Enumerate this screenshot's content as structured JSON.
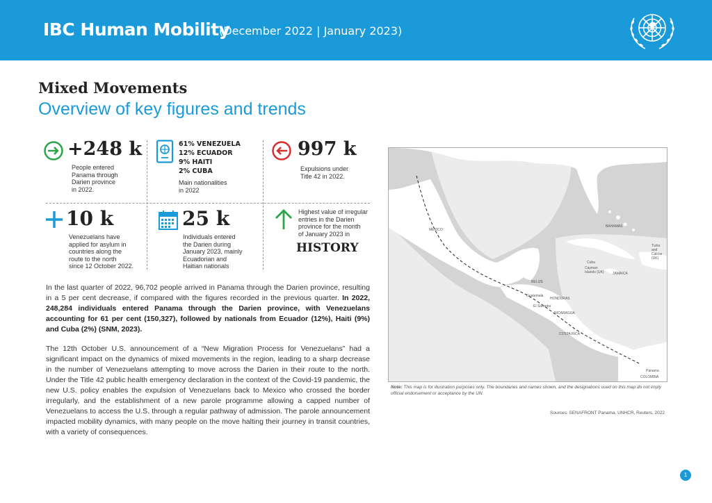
{
  "header": {
    "title": "IBC Human Mobility",
    "subtitle": "(December 2022 | January 2023)"
  },
  "section": {
    "title": "Mixed Movements",
    "subtitle": "Overview of key figures and trends"
  },
  "stats": {
    "entered": {
      "value": "+248 k",
      "desc": [
        "People entered",
        "Panama through",
        "Darien province",
        "in 2022."
      ]
    },
    "nationalities": {
      "lines": [
        "61% VENEZUELA",
        "12% ECUADOR",
        "9% HAITI",
        "2% CUBA"
      ],
      "desc": [
        "Main nationalities",
        "in 2022"
      ]
    },
    "expulsions": {
      "value": "997 k",
      "desc": [
        "Expulsions under",
        "Title 42 in 2022."
      ]
    },
    "asylum": {
      "value": "10 k",
      "desc": [
        "Venezuelans have",
        "applied for asylum in",
        "countries along the",
        "route to the north",
        "since 12 October 2022."
      ]
    },
    "january": {
      "value": "25 k",
      "desc": [
        "Individuals entered",
        "the Darien during",
        "January 2023, mainly",
        "Ecuadorian and",
        "Haitian nationals"
      ]
    },
    "history": {
      "desc": [
        "Highest value of irregular",
        "entries in the Darien",
        "province for the month",
        "of January 2023 in"
      ],
      "value": "HISTORY"
    }
  },
  "paragraphs": {
    "p1_normal": "In the last quarter of 2022, 96,702 people arrived in Panama through the Darien province, resulting in a 5 per cent decrease, if compared with the figures recorded in the previous quarter. ",
    "p1_bold": "In 2022, 248,284 individuals entered Panama through the Darien province, with Venezuelans accounting for 61 per cent (150,327), followed by nationals from Ecuador (12%), Haiti (9%) and Cuba (2%) (SNM, 2023).",
    "p2": "The 12th October U.S. announcement of a “New Migration Process for Venezuelans” had a significant impact on the dynamics of mixed movements in the region, leading to a sharp decrease in the number of Venezuelans attempting to move across the Darien in their route to the north. Under the Title 42 public health emergency declaration in the context of the Covid-19 pandemic, the new U.S. policy enables the expulsion of Venezuelans back to Mexico who crossed the border irregularly, and the establishment of a new parole programme allowing a capped number of Venezuelans to access the U.S. through a regular pathway of admission. The parole announcement impacted mobility dynamics, with many people on the move halting their journey in transit countries, with a variety of consequences."
  },
  "map": {
    "labels": {
      "mexico": "MEXICO",
      "bahamas": "BAHAMAS",
      "cuba": "Cuba",
      "cayman": "Cayman Islands (UK)",
      "jamaica": "JAMAICA",
      "belize": "BELIZE",
      "guatemala": "Guatemala",
      "honduras": "HONDURAS",
      "salvador": "El Salvador",
      "nicaragua": "NICARAGUA",
      "costarica": "COSTA RICA",
      "panama": "Panama",
      "colombia": "COLOMBIA",
      "turks": "Turks and Caicos (UK)"
    },
    "note_label": "Note:",
    "note": " This map is for illustration purposes only. The boundaries and names shown, and the designations used on this map do not imply official endorsement or acceptance by the UN.",
    "sources": "Sources: SENAFRONT Panama, UNHCR, Reuters, 2022"
  },
  "page_number": "1",
  "colors": {
    "brand_blue": "#1a9ad9",
    "green": "#2ca44a",
    "red": "#d62f2f"
  },
  "icons": [
    "un-emblem-icon",
    "arrow-in-icon",
    "passport-icon",
    "arrow-out-icon",
    "plus-icon",
    "calendar-icon",
    "arrow-up-icon"
  ]
}
